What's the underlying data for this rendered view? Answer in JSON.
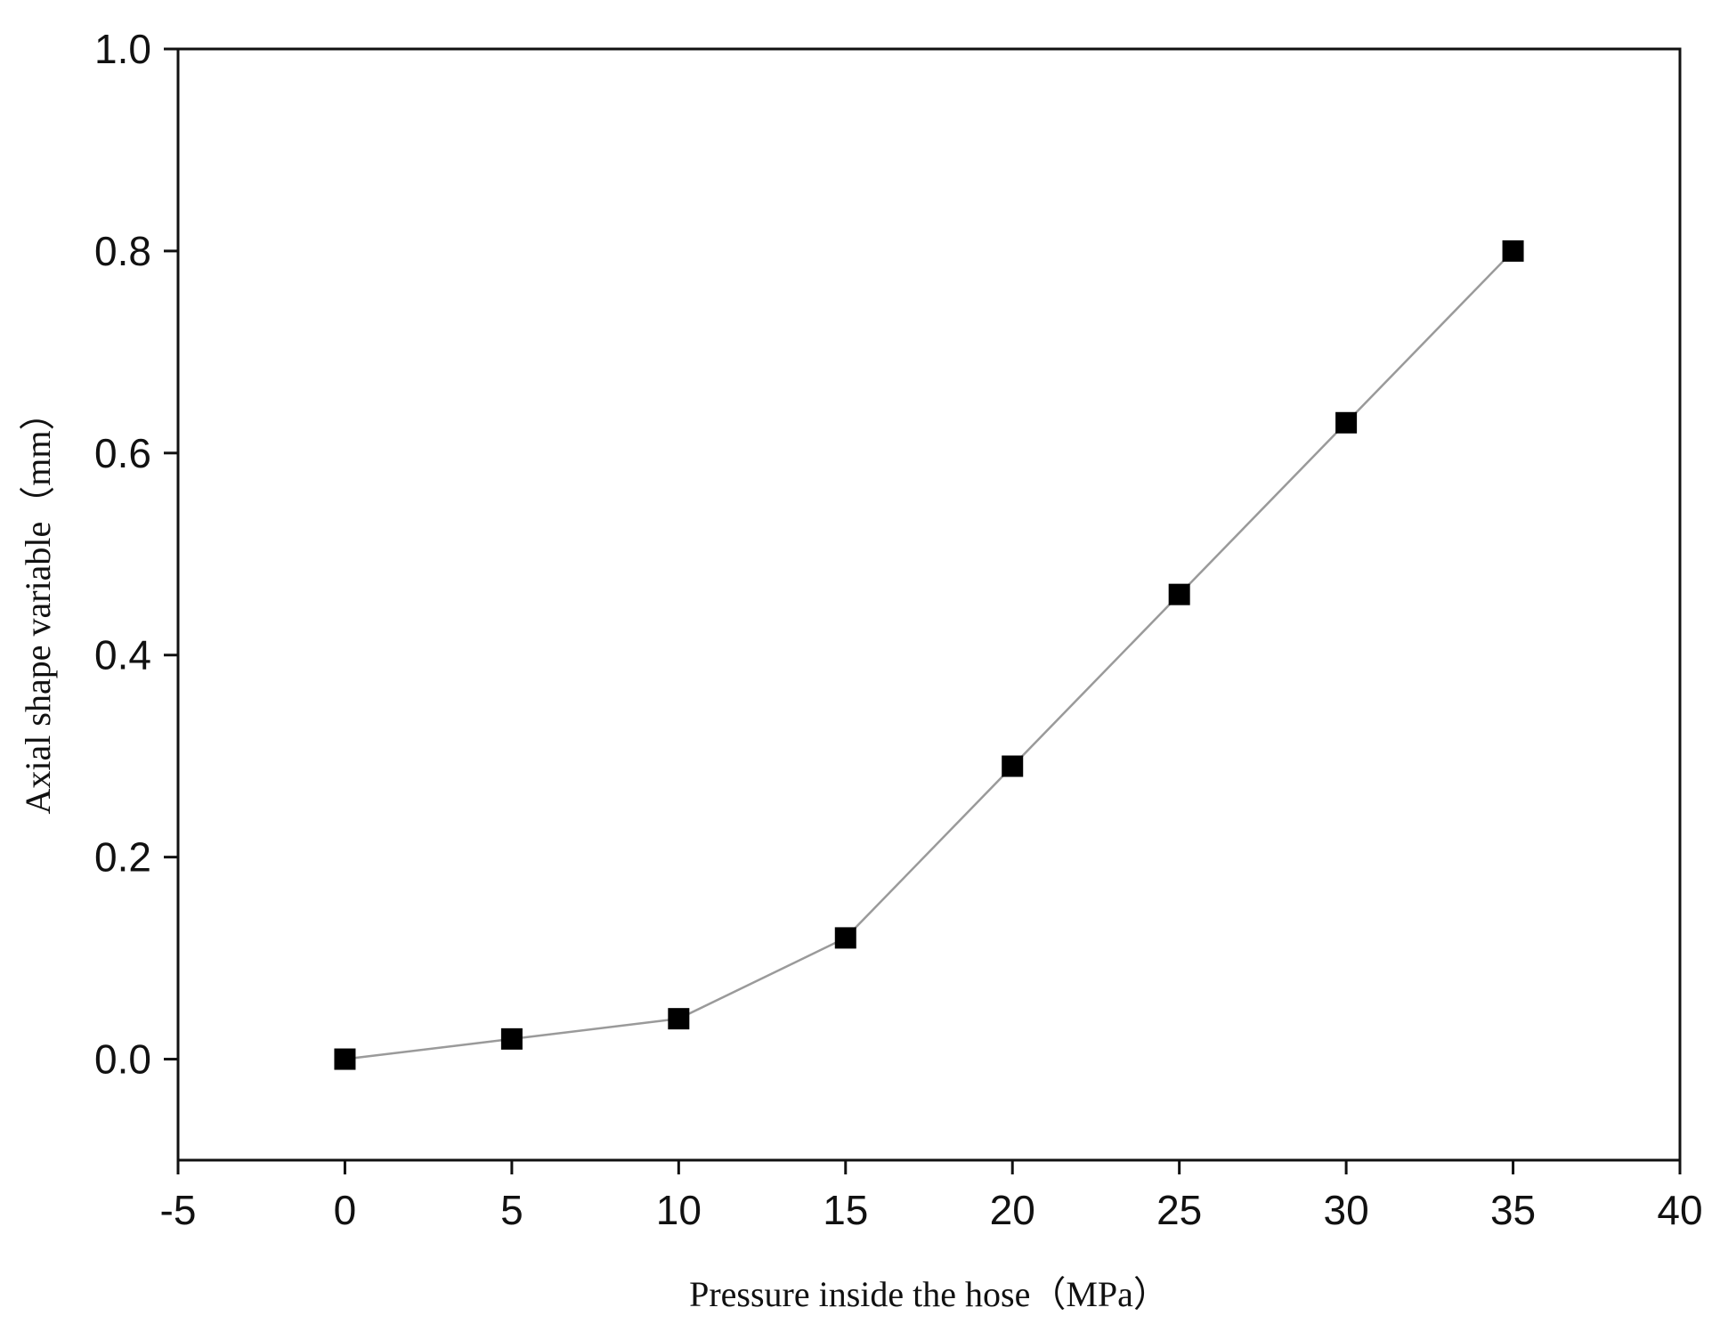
{
  "chart_data": {
    "type": "line",
    "title": "",
    "xlabel": "Pressure inside the hose（MPa）",
    "ylabel": "Axial shape variable（mm）",
    "xlim": [
      -5,
      40
    ],
    "ylim": [
      -0.1,
      1.0
    ],
    "xticks": [
      -5,
      0,
      5,
      10,
      15,
      20,
      25,
      30,
      35,
      40
    ],
    "xtick_labels": [
      "-5",
      "0",
      "5",
      "10",
      "15",
      "20",
      "25",
      "30",
      "35",
      "40"
    ],
    "yticks": [
      0.0,
      0.2,
      0.4,
      0.6,
      0.8,
      1.0
    ],
    "ytick_labels": [
      "0.0",
      "0.2",
      "0.4",
      "0.6",
      "0.8",
      "1.0"
    ],
    "grid": false,
    "legend": "none",
    "series": [
      {
        "x": [
          0,
          5,
          10,
          15,
          20,
          25,
          30,
          35
        ],
        "y": [
          0.0,
          0.02,
          0.04,
          0.12,
          0.29,
          0.46,
          0.63,
          0.8
        ],
        "marker": "square",
        "marker_color": "#000000",
        "line_color": "#9a9a9a"
      }
    ]
  }
}
